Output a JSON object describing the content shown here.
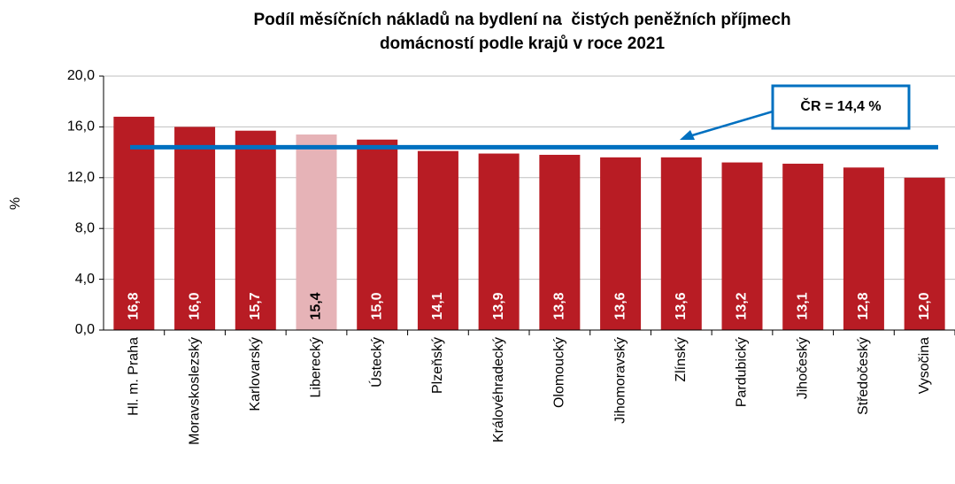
{
  "chart_data": {
    "type": "bar",
    "title": [
      "Podíl měsíčních nákladů na bydlení na  čistých peněžních příjmech",
      "domácností podle krajů v roce 2021"
    ],
    "y_label": "%",
    "categories": [
      "Hl. m. Praha",
      "Moravskoslezský",
      "Karlovarský",
      "Liberecký",
      "Ústecký",
      "Plzeňský",
      "Královéhradecký",
      "Olomoucký",
      "Jihomoravský",
      "Zlínský",
      "Pardubický",
      "Jihočeský",
      "Středočeský",
      "Vysočina"
    ],
    "values": [
      16.8,
      16.0,
      15.7,
      15.4,
      15.0,
      14.1,
      13.9,
      13.8,
      13.6,
      13.6,
      13.2,
      13.1,
      12.8,
      12.0
    ],
    "value_labels": [
      "16,8",
      "16,0",
      "15,7",
      "15,4",
      "15,0",
      "14,1",
      "13,9",
      "13,8",
      "13,6",
      "13,6",
      "13,2",
      "13,1",
      "12,8",
      "12,0"
    ],
    "colors": [
      "#b81c24",
      "#b81c24",
      "#b81c24",
      "#e6b3b7",
      "#b81c24",
      "#b81c24",
      "#b81c24",
      "#b81c24",
      "#b81c24",
      "#b81c24",
      "#b81c24",
      "#b81c24",
      "#b81c24",
      "#b81c24"
    ],
    "label_colors": [
      "#ffffff",
      "#ffffff",
      "#ffffff",
      "#000000",
      "#ffffff",
      "#ffffff",
      "#ffffff",
      "#ffffff",
      "#ffffff",
      "#ffffff",
      "#ffffff",
      "#ffffff",
      "#ffffff",
      "#ffffff"
    ],
    "reference_line": {
      "value": 14.4,
      "label": "ČR = 14,4 %",
      "color": "#0070c0"
    },
    "ylim": [
      0,
      20
    ],
    "yticks": [
      {
        "value": 0,
        "label": "0,0"
      },
      {
        "value": 4,
        "label": "4,0"
      },
      {
        "value": 8,
        "label": "8,0"
      },
      {
        "value": 12,
        "label": "12,0"
      },
      {
        "value": 16,
        "label": "16,0"
      },
      {
        "value": 20,
        "label": "20,0"
      }
    ],
    "grid": true
  }
}
